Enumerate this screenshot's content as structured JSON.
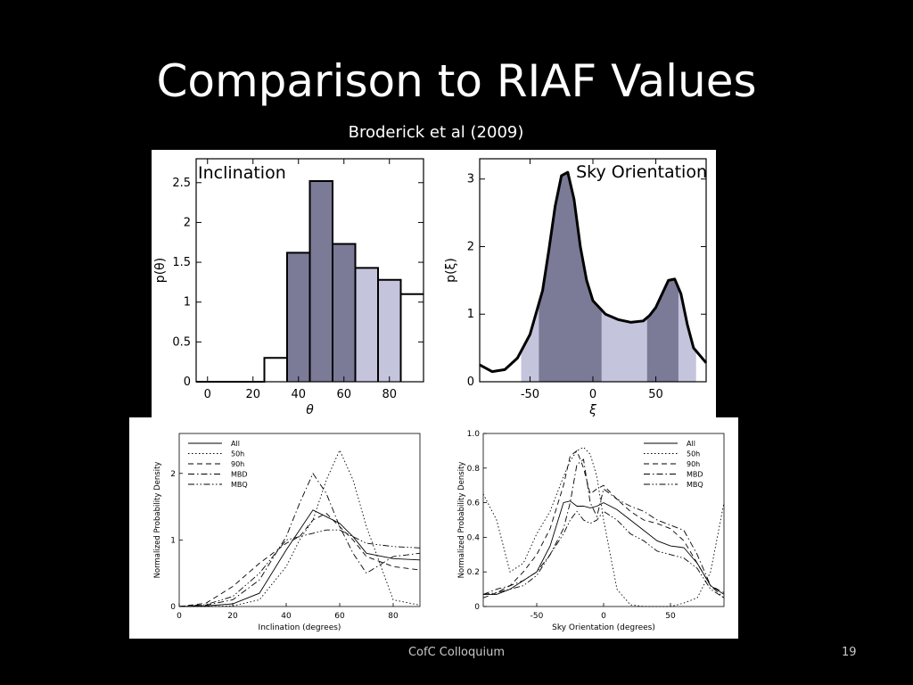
{
  "slide": {
    "title": "Comparison to RIAF Values",
    "subtitle": "Broderick et al (2009)",
    "footer": "CofC Colloquium",
    "page_number": "19"
  },
  "colors": {
    "dark_fill": "#7b7b97",
    "light_fill": "#c4c4dc",
    "background": "#000000",
    "panel": "#ffffff"
  },
  "chart_data": [
    {
      "type": "area",
      "title": "Inclination",
      "xlabel": "θ",
      "ylabel": "p(θ)",
      "xlim": [
        -5,
        95
      ],
      "ylim": [
        0,
        2.8
      ],
      "xticks": [
        "0",
        "20",
        "40",
        "60",
        "80"
      ],
      "yticks": [
        "0",
        "0.5",
        "1",
        "1.5",
        "2",
        "2.5"
      ],
      "bins": [
        {
          "x0": -5,
          "x1": 25,
          "value": 0,
          "shade": "none"
        },
        {
          "x0": 25,
          "x1": 35,
          "value": 0.3,
          "shade": "none"
        },
        {
          "x0": 35,
          "x1": 45,
          "value": 1.62,
          "shade": "dark"
        },
        {
          "x0": 45,
          "x1": 55,
          "value": 2.52,
          "shade": "dark"
        },
        {
          "x0": 55,
          "x1": 65,
          "value": 1.73,
          "shade": "dark"
        },
        {
          "x0": 65,
          "x1": 75,
          "value": 1.43,
          "shade": "light"
        },
        {
          "x0": 75,
          "x1": 85,
          "value": 1.28,
          "shade": "light"
        },
        {
          "x0": 85,
          "x1": 95,
          "value": 1.1,
          "shade": "none"
        }
      ]
    },
    {
      "type": "area",
      "title": "Sky Orientation",
      "xlabel": "ξ",
      "ylabel": "p(ξ)",
      "xlim": [
        -90,
        90
      ],
      "ylim": [
        0,
        3.3
      ],
      "xticks": [
        "-50",
        "0",
        "50"
      ],
      "yticks": [
        "0",
        "1",
        "2",
        "3"
      ],
      "x": [
        -90,
        -80,
        -70,
        -60,
        -50,
        -40,
        -35,
        -30,
        -25,
        -20,
        -15,
        -10,
        -5,
        0,
        10,
        20,
        30,
        40,
        45,
        50,
        55,
        60,
        65,
        70,
        75,
        80,
        90
      ],
      "y": [
        0.25,
        0.15,
        0.18,
        0.35,
        0.7,
        1.35,
        1.95,
        2.6,
        3.05,
        3.1,
        2.7,
        2.0,
        1.5,
        1.2,
        1.0,
        0.92,
        0.88,
        0.9,
        0.98,
        1.1,
        1.3,
        1.5,
        1.52,
        1.3,
        0.85,
        0.5,
        0.28
      ],
      "shaded_regions": [
        {
          "from": -57,
          "to": -43,
          "shade": "light"
        },
        {
          "from": -43,
          "to": 7,
          "shade": "dark"
        },
        {
          "from": 7,
          "to": 43,
          "shade": "light"
        },
        {
          "from": 43,
          "to": 68,
          "shade": "dark"
        },
        {
          "from": 68,
          "to": 82,
          "shade": "light"
        }
      ]
    },
    {
      "type": "line",
      "xlabel": "Inclination (degrees)",
      "ylabel": "Normalized Probability Density",
      "xlim": [
        0,
        90
      ],
      "ylim": [
        0,
        2.6
      ],
      "xticks": [
        "0",
        "20",
        "40",
        "60",
        "80"
      ],
      "yticks": [
        "0",
        "1",
        "2"
      ],
      "legend": "top-left",
      "x": [
        0,
        10,
        20,
        30,
        40,
        45,
        50,
        55,
        60,
        65,
        70,
        80,
        90
      ],
      "series": [
        {
          "name": "All",
          "dash": "solid",
          "values": [
            0,
            0.01,
            0.04,
            0.2,
            0.85,
            1.15,
            1.45,
            1.35,
            1.25,
            1.05,
            0.8,
            0.72,
            0.7
          ]
        },
        {
          "name": "50h",
          "dash": "dotted",
          "values": [
            0,
            0,
            0.01,
            0.1,
            0.6,
            1.0,
            1.3,
            1.9,
            2.35,
            1.9,
            1.2,
            0.1,
            0.02
          ]
        },
        {
          "name": "90h",
          "dash": "dashed",
          "values": [
            0,
            0.05,
            0.3,
            0.65,
            0.95,
            1.05,
            1.3,
            1.4,
            1.2,
            1.0,
            0.75,
            0.6,
            0.55
          ]
        },
        {
          "name": "MBD",
          "dash": "dashdot",
          "values": [
            0,
            0.02,
            0.1,
            0.4,
            1.05,
            1.55,
            2.0,
            1.7,
            1.2,
            0.8,
            0.5,
            0.75,
            0.8
          ]
        },
        {
          "name": "MBQ",
          "dash": "dashdotdot",
          "values": [
            0,
            0.03,
            0.15,
            0.5,
            1.0,
            1.05,
            1.1,
            1.15,
            1.15,
            1.05,
            0.95,
            0.9,
            0.88
          ]
        }
      ]
    },
    {
      "type": "line",
      "xlabel": "Sky Orientation (degrees)",
      "ylabel": "Normalized Probability Density",
      "xlim": [
        -90,
        90
      ],
      "ylim": [
        0,
        1.0
      ],
      "xticks": [
        "-50",
        "0",
        "50"
      ],
      "yticks": [
        "0",
        "0.2",
        "0.4",
        "0.6",
        "0.8",
        "1.0"
      ],
      "legend": "top-right",
      "x": [
        -90,
        -80,
        -70,
        -60,
        -50,
        -40,
        -30,
        -25,
        -20,
        -15,
        -10,
        -5,
        0,
        10,
        20,
        30,
        40,
        50,
        60,
        70,
        80,
        90
      ],
      "series": [
        {
          "name": "All",
          "dash": "solid",
          "values": [
            0.07,
            0.07,
            0.1,
            0.15,
            0.2,
            0.35,
            0.6,
            0.61,
            0.58,
            0.58,
            0.57,
            0.58,
            0.6,
            0.56,
            0.5,
            0.44,
            0.38,
            0.35,
            0.34,
            0.25,
            0.12,
            0.07
          ]
        },
        {
          "name": "50h",
          "dash": "dotted",
          "values": [
            0.65,
            0.5,
            0.2,
            0.25,
            0.42,
            0.55,
            0.75,
            0.84,
            0.9,
            0.92,
            0.88,
            0.75,
            0.5,
            0.1,
            0.01,
            0.0,
            0.0,
            0.0,
            0.02,
            0.05,
            0.2,
            0.6
          ]
        },
        {
          "name": "90h",
          "dash": "dashed",
          "values": [
            0.05,
            0.08,
            0.12,
            0.2,
            0.3,
            0.45,
            0.7,
            0.87,
            0.9,
            0.8,
            0.65,
            0.68,
            0.7,
            0.62,
            0.55,
            0.5,
            0.48,
            0.45,
            0.38,
            0.25,
            0.12,
            0.08
          ]
        },
        {
          "name": "MBD",
          "dash": "dashdot",
          "values": [
            0.07,
            0.1,
            0.12,
            0.15,
            0.2,
            0.3,
            0.45,
            0.6,
            0.82,
            0.85,
            0.6,
            0.52,
            0.68,
            0.62,
            0.58,
            0.55,
            0.5,
            0.47,
            0.44,
            0.3,
            0.12,
            0.05
          ]
        },
        {
          "name": "MBQ",
          "dash": "dashdotdot",
          "values": [
            0.07,
            0.08,
            0.1,
            0.12,
            0.18,
            0.3,
            0.42,
            0.5,
            0.55,
            0.5,
            0.48,
            0.5,
            0.55,
            0.5,
            0.42,
            0.38,
            0.32,
            0.3,
            0.28,
            0.22,
            0.1,
            0.05
          ]
        }
      ]
    }
  ]
}
